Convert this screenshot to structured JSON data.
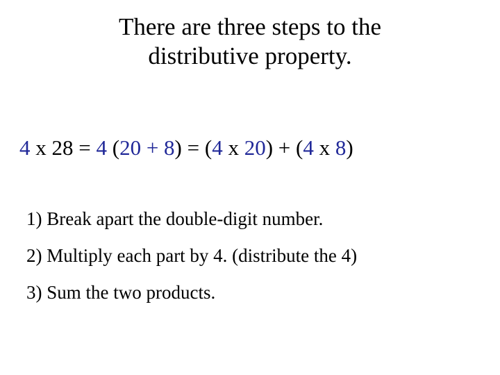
{
  "colors": {
    "text": "#000000",
    "accent": "#202898",
    "background": "#ffffff"
  },
  "title": {
    "line1": "There are three steps to the",
    "line2": "distributive property."
  },
  "equation": {
    "p1": "4",
    "p2": " x ",
    "p3": "28",
    "p4": " = ",
    "p5": "4",
    "p6": " (",
    "p7": "20 + 8",
    "p8": ") = (",
    "p9": "4",
    "p10": " x ",
    "p11": "20",
    "p12": ") + (",
    "p13": "4",
    "p14": " x ",
    "p15": "8",
    "p16": ")"
  },
  "steps": {
    "s1": "1) Break apart the double-digit number.",
    "s2": "2) Multiply each part by 4. (distribute the 4)",
    "s3": "3) Sum the two products."
  }
}
